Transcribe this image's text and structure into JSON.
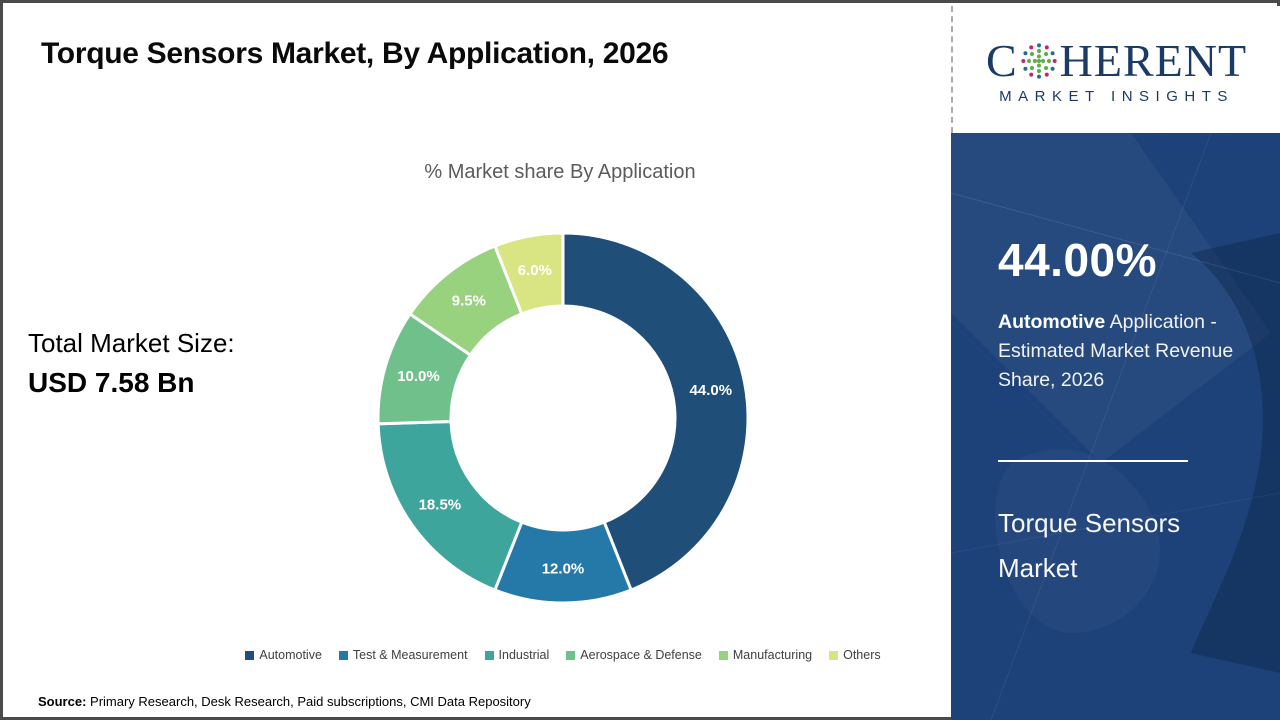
{
  "header": {
    "title": "Torque Sensors Market, By Application, 2026"
  },
  "logo": {
    "brand_first_letter": "C",
    "brand_rest": "HERENT",
    "brand_subtitle": "MARKET INSIGHTS",
    "globe_icon": "dotted-globe-icon",
    "brand_color": "#1b3a66"
  },
  "left_panel": {
    "total_label": "Total Market Size:",
    "total_value": "USD 7.58 Bn"
  },
  "chart_data": {
    "type": "pie",
    "subtype": "donut",
    "title": "% Market share By Application",
    "categories": [
      "Automotive",
      "Test & Measurement",
      "Industrial",
      "Aerospace & Defense",
      "Manufacturing",
      "Others"
    ],
    "values": [
      44.0,
      12.0,
      18.5,
      10.0,
      9.5,
      6.0
    ],
    "colors": [
      "#1F4E79",
      "#2479A9",
      "#3DA59C",
      "#6FC08B",
      "#98D27F",
      "#D9E583"
    ],
    "start_angle_deg": 0,
    "direction": "clockwise",
    "legend_position": "bottom",
    "data_label_format": "0.0%"
  },
  "sidebar": {
    "background": "#1D4279",
    "highlight_value": "44.00%",
    "highlight_bold": "Automotive",
    "highlight_rest": " Application - Estimated Market Revenue Share, 2026",
    "footer_title": "Torque Sensors Market"
  },
  "source": {
    "label": "Source:",
    "text": " Primary Research, Desk Research, Paid subscriptions, CMI Data Repository"
  }
}
